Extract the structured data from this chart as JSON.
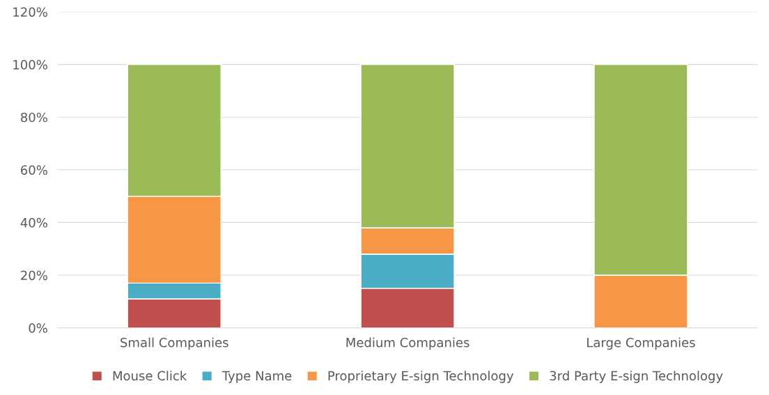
{
  "chart_data": {
    "type": "bar",
    "stacked": true,
    "categories": [
      "Small Companies",
      "Medium Companies",
      "Large Companies"
    ],
    "series": [
      {
        "name": "Mouse Click",
        "color": "#c0504d",
        "values": [
          11,
          15,
          0
        ]
      },
      {
        "name": "Type Name",
        "color": "#4bacc6",
        "values": [
          6,
          13,
          0
        ]
      },
      {
        "name": "Proprietary E-sign Technology",
        "color": "#f79646",
        "values": [
          33,
          10,
          20
        ]
      },
      {
        "name": "3rd Party E-sign Technology",
        "color": "#9bbb59",
        "values": [
          50,
          62,
          80
        ]
      }
    ],
    "ylim": [
      0,
      120
    ],
    "yticks": [
      {
        "value": 0,
        "label": "0%"
      },
      {
        "value": 20,
        "label": "20%"
      },
      {
        "value": 40,
        "label": "40%"
      },
      {
        "value": 60,
        "label": "60%"
      },
      {
        "value": 80,
        "label": "80%"
      },
      {
        "value": 100,
        "label": "100%"
      },
      {
        "value": 120,
        "label": "120%"
      }
    ],
    "grid": "y",
    "legend": "bottom"
  }
}
